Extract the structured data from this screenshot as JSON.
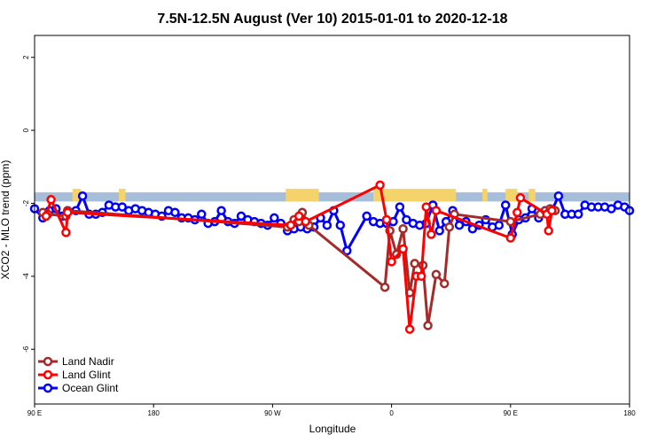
{
  "chart_data": {
    "type": "line",
    "title": "7.5N-12.5N August (Ver 10)   2015-01-01 to 2020-12-18",
    "xlabel": "Longitude",
    "ylabel": "XCO2 - MLO trend (ppm)",
    "xlim": [
      90,
      450
    ],
    "ylim": [
      -7.5,
      2.6
    ],
    "x_ticks": [
      {
        "value": 90,
        "label": "90 E"
      },
      {
        "value": 180,
        "label": "180"
      },
      {
        "value": 270,
        "label": "90 W"
      },
      {
        "value": 360,
        "label": "0"
      },
      {
        "value": 450,
        "label": "90 E"
      },
      {
        "value": 540,
        "label": "180"
      }
    ],
    "x_ticks_visible": [
      {
        "value": 90,
        "label": "90 E"
      },
      {
        "value": 162,
        "label": "180"
      },
      {
        "value": 234,
        "label": "90 W"
      },
      {
        "value": 306,
        "label": "0"
      },
      {
        "value": 378,
        "label": "90 E"
      },
      {
        "value": 450,
        "label": "180"
      }
    ],
    "y_ticks": [
      2,
      0,
      -2,
      -4,
      -6
    ],
    "grid": false,
    "legend_position": "bottom-left",
    "band": {
      "y_low": -1.95,
      "y_high": -1.7,
      "color": "#a7bedb",
      "land_color": "#f5d36b"
    },
    "land_bands": [
      {
        "x_start": 113,
        "x_end": 118
      },
      {
        "x_start": 141,
        "x_end": 145
      },
      {
        "x_start": 242,
        "x_end": 262
      },
      {
        "x_start": 295,
        "x_end": 345
      },
      {
        "x_start": 361,
        "x_end": 364
      },
      {
        "x_start": 375,
        "x_end": 382
      },
      {
        "x_start": 389,
        "x_end": 393
      }
    ],
    "series": [
      {
        "name": "Land Nadir",
        "color": "#a52a2a",
        "points": [
          [
            95,
            -2.25
          ],
          [
            98,
            -2.3
          ],
          [
            109,
            -2.35
          ],
          [
            110,
            -2.2
          ],
          [
            243,
            -2.65
          ],
          [
            247,
            -2.45
          ],
          [
            250,
            -2.5
          ],
          [
            252,
            -2.25
          ],
          [
            256,
            -2.6
          ],
          [
            302,
            -4.3
          ],
          [
            305,
            -2.75
          ],
          [
            309,
            -3.4
          ],
          [
            313,
            -2.7
          ],
          [
            317,
            -4.45
          ],
          [
            320,
            -3.65
          ],
          [
            325,
            -3.7
          ],
          [
            328,
            -5.35
          ],
          [
            333,
            -3.95
          ],
          [
            338,
            -4.2
          ],
          [
            341,
            -2.65
          ],
          [
            344,
            -2.3
          ],
          [
            378,
            -2.5
          ],
          [
            396,
            -2.3
          ],
          [
            399,
            -2.2
          ],
          [
            402,
            -2.15
          ],
          [
            405,
            -2.2
          ]
        ]
      },
      {
        "name": "Land Glint",
        "color": "#ff0000",
        "points": [
          [
            97,
            -2.35
          ],
          [
            100,
            -1.9
          ],
          [
            109,
            -2.8
          ],
          [
            110,
            -2.25
          ],
          [
            245,
            -2.6
          ],
          [
            250,
            -2.35
          ],
          [
            254,
            -2.5
          ],
          [
            299,
            -1.5
          ],
          [
            303,
            -2.45
          ],
          [
            306,
            -3.6
          ],
          [
            313,
            -3.25
          ],
          [
            317,
            -5.45
          ],
          [
            321,
            -4.0
          ],
          [
            324,
            -4.0
          ],
          [
            327,
            -2.1
          ],
          [
            330,
            -2.85
          ],
          [
            333,
            -2.2
          ],
          [
            378,
            -2.95
          ],
          [
            382,
            -2.25
          ],
          [
            384,
            -1.85
          ],
          [
            400,
            -2.3
          ],
          [
            401,
            -2.75
          ],
          [
            403,
            -2.2
          ]
        ]
      },
      {
        "name": "Ocean Glint",
        "color": "#0000ff",
        "points": [
          [
            90,
            -2.15
          ],
          [
            95,
            -2.4
          ],
          [
            99,
            -2.2
          ],
          [
            103,
            -2.15
          ],
          [
            107,
            -2.35
          ],
          [
            110,
            -2.2
          ],
          [
            115,
            -2.2
          ],
          [
            119,
            -1.8
          ],
          [
            123,
            -2.3
          ],
          [
            127,
            -2.3
          ],
          [
            131,
            -2.25
          ],
          [
            135,
            -2.05
          ],
          [
            139,
            -2.1
          ],
          [
            143,
            -2.1
          ],
          [
            147,
            -2.2
          ],
          [
            151,
            -2.15
          ],
          [
            155,
            -2.2
          ],
          [
            159,
            -2.25
          ],
          [
            163,
            -2.3
          ],
          [
            167,
            -2.35
          ],
          [
            171,
            -2.2
          ],
          [
            175,
            -2.25
          ],
          [
            179,
            -2.4
          ],
          [
            183,
            -2.4
          ],
          [
            187,
            -2.45
          ],
          [
            191,
            -2.3
          ],
          [
            195,
            -2.55
          ],
          [
            199,
            -2.5
          ],
          [
            203,
            -2.2
          ],
          [
            207,
            -2.5
          ],
          [
            211,
            -2.55
          ],
          [
            215,
            -2.35
          ],
          [
            219,
            -2.45
          ],
          [
            223,
            -2.5
          ],
          [
            227,
            -2.55
          ],
          [
            231,
            -2.6
          ],
          [
            235,
            -2.4
          ],
          [
            239,
            -2.55
          ],
          [
            243,
            -2.75
          ],
          [
            247,
            -2.7
          ],
          [
            251,
            -2.65
          ],
          [
            255,
            -2.7
          ],
          [
            259,
            -2.65
          ],
          [
            263,
            -2.4
          ],
          [
            267,
            -2.6
          ],
          [
            271,
            -2.2
          ],
          [
            275,
            -2.6
          ],
          [
            279,
            -3.3
          ],
          [
            291,
            -2.35
          ],
          [
            295,
            -2.5
          ],
          [
            299,
            -2.55
          ],
          [
            303,
            -2.55
          ],
          [
            307,
            -2.5
          ],
          [
            311,
            -2.1
          ],
          [
            315,
            -2.45
          ],
          [
            319,
            -2.55
          ],
          [
            323,
            -2.6
          ],
          [
            327,
            -2.55
          ],
          [
            331,
            -2.05
          ],
          [
            335,
            -2.75
          ],
          [
            339,
            -2.5
          ],
          [
            343,
            -2.2
          ],
          [
            347,
            -2.6
          ],
          [
            351,
            -2.5
          ],
          [
            355,
            -2.7
          ],
          [
            359,
            -2.6
          ],
          [
            363,
            -2.45
          ],
          [
            367,
            -2.65
          ],
          [
            371,
            -2.6
          ],
          [
            375,
            -2.05
          ],
          [
            379,
            -2.85
          ],
          [
            383,
            -2.45
          ],
          [
            387,
            -2.4
          ],
          [
            391,
            -2.15
          ],
          [
            395,
            -2.4
          ],
          [
            399,
            -2.2
          ],
          [
            403,
            -2.2
          ],
          [
            407,
            -1.8
          ],
          [
            411,
            -2.3
          ],
          [
            415,
            -2.3
          ],
          [
            419,
            -2.3
          ],
          [
            423,
            -2.05
          ],
          [
            427,
            -2.1
          ],
          [
            431,
            -2.1
          ],
          [
            435,
            -2.1
          ],
          [
            439,
            -2.15
          ],
          [
            443,
            -2.05
          ],
          [
            447,
            -2.1
          ],
          [
            450,
            -2.2
          ]
        ]
      }
    ]
  }
}
